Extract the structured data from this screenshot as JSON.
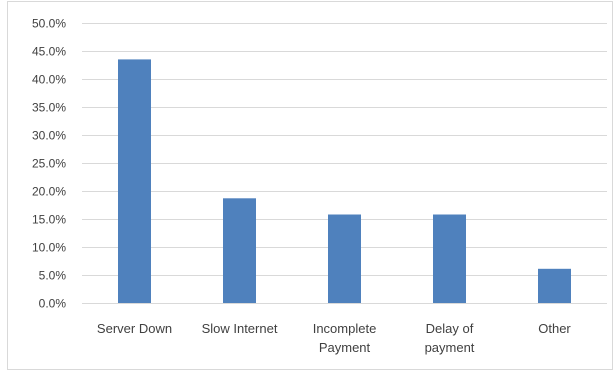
{
  "chart_data": {
    "type": "bar",
    "title": "",
    "xlabel": "",
    "ylabel": "",
    "categories": [
      [
        "Server Down"
      ],
      [
        "Slow Internet"
      ],
      [
        "Incomplete",
        "Payment"
      ],
      [
        "Delay of",
        "payment"
      ],
      [
        "Other"
      ]
    ],
    "values": [
      43.5,
      18.7,
      15.8,
      15.8,
      6.1
    ],
    "ylim": [
      0,
      50
    ],
    "ytick_step": 5,
    "ytick_labels": [
      "0.0%",
      "5.0%",
      "10.0%",
      "15.0%",
      "20.0%",
      "25.0%",
      "30.0%",
      "35.0%",
      "40.0%",
      "45.0%",
      "50.0%"
    ],
    "grid": true,
    "legend": "none",
    "bar_color": "#4f81bd",
    "grid_color": "#d9d9d9"
  }
}
